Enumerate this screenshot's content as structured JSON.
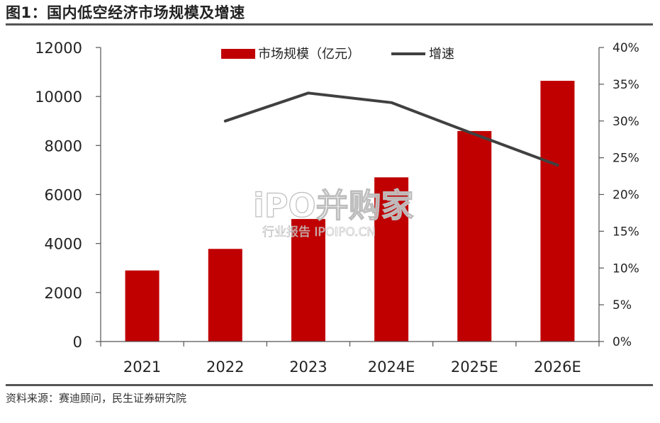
{
  "title": "图1：国内低空经济市场规模及增速",
  "source": "资料来源：赛迪顾问，民生证券研究院",
  "watermark": {
    "main": "iPO并购家",
    "sub": "行业报告 IPOIPO.CN"
  },
  "colors": {
    "bar": "#C00000",
    "line": "#404040",
    "axis": "#555555"
  },
  "chart_data": {
    "type": "bar+line",
    "categories": [
      "2021",
      "2022",
      "2023",
      "2024E",
      "2025E",
      "2026E"
    ],
    "series": [
      {
        "name": "市场规模（亿元）",
        "kind": "bar",
        "axis": "left",
        "values": [
          2900,
          3780,
          5000,
          6700,
          8590,
          10640
        ]
      },
      {
        "name": "增速",
        "kind": "line",
        "axis": "right",
        "values": [
          null,
          30.0,
          33.8,
          32.5,
          28.2,
          24.0
        ]
      }
    ],
    "y_left": {
      "min": 0,
      "max": 12000,
      "ticks": [
        0,
        2000,
        4000,
        6000,
        8000,
        10000,
        12000
      ]
    },
    "y_right": {
      "min": 0,
      "max": 40,
      "unit": "%",
      "ticks": [
        0,
        5,
        10,
        15,
        20,
        25,
        30,
        35,
        40
      ]
    },
    "legend": "top-center",
    "grid": false
  }
}
